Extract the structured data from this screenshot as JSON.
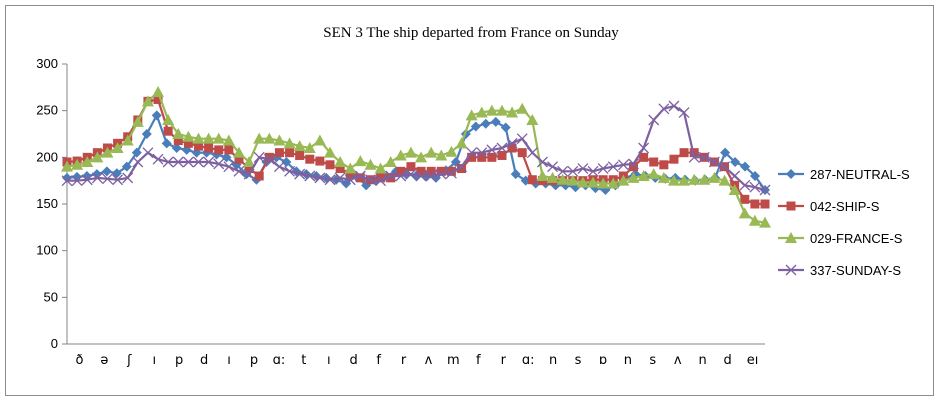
{
  "chart_data": {
    "type": "line",
    "title": "SEN 3 The ship departed from France on Sunday",
    "xlabel": "",
    "ylabel": "",
    "ylim": [
      0,
      300
    ],
    "yticks": [
      0,
      50,
      100,
      150,
      200,
      250,
      300
    ],
    "grid": false,
    "legend_position": "right",
    "x_tick_labels": [
      "ð",
      "ə",
      "ʃ",
      "ı",
      "p",
      "d",
      "ı",
      "p",
      "ɑ:",
      "t",
      "ı",
      "d",
      "f",
      "r",
      "ʌ",
      "m",
      "f",
      "r",
      "ɑ:",
      "n",
      "s",
      "ɒ",
      "n",
      "s",
      "ʌ",
      "n",
      "d",
      "eı"
    ],
    "series": [
      {
        "name": "287-NEUTRAL-S",
        "color": "#4a7ebb",
        "marker": "diamond",
        "values": [
          178,
          179,
          180,
          182,
          185,
          183,
          190,
          205,
          225,
          245,
          215,
          210,
          208,
          205,
          205,
          203,
          200,
          192,
          182,
          176,
          195,
          200,
          195,
          185,
          182,
          180,
          178,
          176,
          172,
          180,
          170,
          175,
          180,
          185,
          182,
          180,
          180,
          178,
          186,
          195,
          225,
          233,
          236,
          238,
          232,
          182,
          175,
          172,
          172,
          170,
          170,
          168,
          170,
          167,
          165,
          170,
          178,
          182,
          180,
          178,
          177,
          178,
          176,
          175,
          176,
          178,
          205,
          195,
          190,
          180,
          165
        ]
      },
      {
        "name": "042-SHIP-S",
        "color": "#be4b48",
        "marker": "square",
        "values": [
          195,
          196,
          200,
          205,
          210,
          215,
          222,
          240,
          260,
          262,
          228,
          218,
          215,
          212,
          210,
          208,
          208,
          198,
          188,
          180,
          200,
          205,
          205,
          202,
          198,
          196,
          192,
          188,
          182,
          178,
          176,
          178,
          178,
          185,
          190,
          185,
          185,
          185,
          185,
          188,
          200,
          200,
          200,
          202,
          210,
          205,
          176,
          175,
          175,
          175,
          175,
          175,
          176,
          176,
          176,
          180,
          190,
          200,
          195,
          192,
          198,
          205,
          205,
          200,
          195,
          190,
          170,
          155,
          150,
          150
        ]
      },
      {
        "name": "029-FRANCE-S",
        "color": "#98b954",
        "marker": "triangle",
        "values": [
          190,
          192,
          195,
          200,
          205,
          210,
          218,
          238,
          260,
          270,
          240,
          225,
          222,
          220,
          220,
          220,
          218,
          205,
          195,
          220,
          220,
          218,
          215,
          212,
          210,
          218,
          205,
          195,
          188,
          196,
          192,
          188,
          195,
          202,
          205,
          200,
          205,
          202,
          206,
          215,
          245,
          248,
          250,
          250,
          248,
          252,
          240,
          180,
          178,
          176,
          175,
          173,
          173,
          172,
          172,
          175,
          178,
          180,
          182,
          178,
          175,
          175,
          176,
          176,
          178,
          175,
          165,
          140,
          132,
          130
        ]
      },
      {
        "name": "337-SUNDAY-S",
        "color": "#7d60a0",
        "marker": "x",
        "values": [
          175,
          175,
          176,
          178,
          177,
          176,
          178,
          195,
          205,
          198,
          195,
          195,
          195,
          195,
          195,
          193,
          190,
          185,
          182,
          200,
          198,
          190,
          185,
          182,
          180,
          178,
          176,
          178,
          176,
          180,
          176,
          175,
          180,
          180,
          182,
          180,
          180,
          182,
          183,
          190,
          205,
          205,
          208,
          210,
          215,
          220,
          205,
          195,
          190,
          185,
          185,
          188,
          185,
          188,
          190,
          192,
          193,
          210,
          240,
          252,
          255,
          248,
          200,
          200,
          195,
          190,
          180,
          170,
          168,
          165
        ]
      }
    ]
  }
}
